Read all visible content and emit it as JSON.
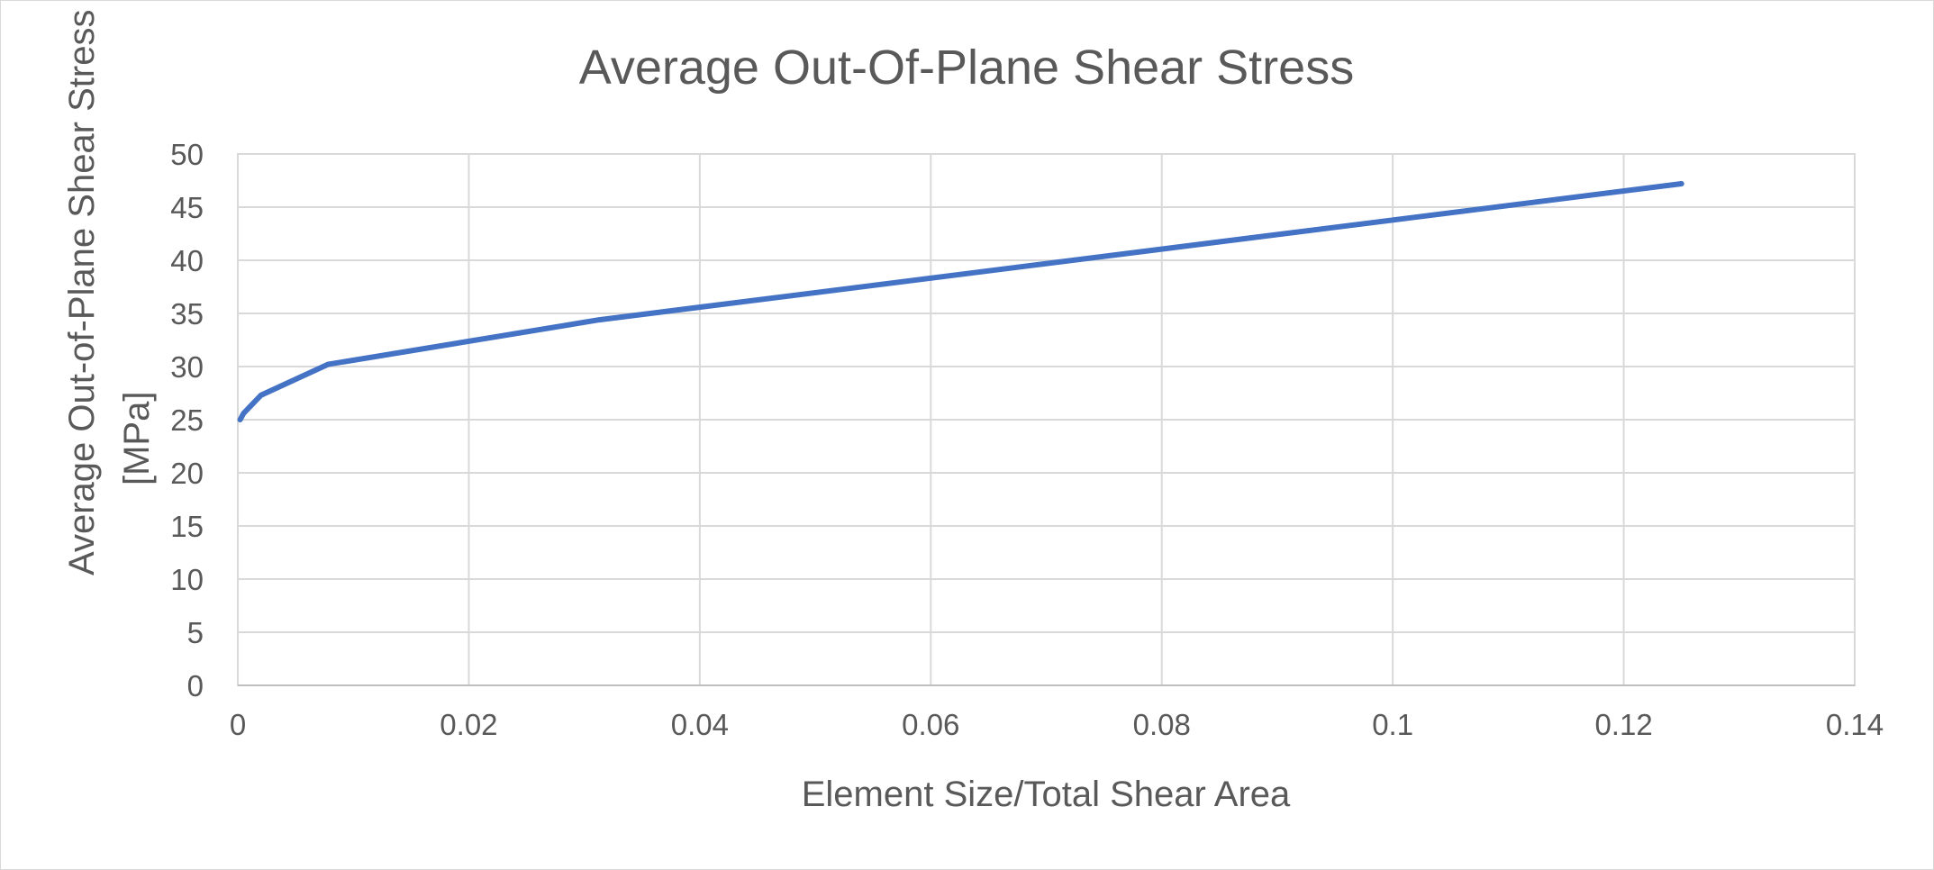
{
  "chart_data": {
    "type": "line",
    "title": "Average Out-Of-Plane Shear Stress",
    "xlabel": "Element Size/Total Shear Area",
    "ylabel_lines": [
      "Average Out-of-Plane Shear Stress",
      "[MPa]"
    ],
    "xlim": [
      0,
      0.14
    ],
    "ylim": [
      0,
      50
    ],
    "x_ticks": [
      0,
      0.02,
      0.04,
      0.06,
      0.08,
      0.1,
      0.12,
      0.14
    ],
    "x_tick_labels": [
      "0",
      "0.02",
      "0.04",
      "0.06",
      "0.08",
      "0.1",
      "0.12",
      "0.14"
    ],
    "y_ticks": [
      0,
      5,
      10,
      15,
      20,
      25,
      30,
      35,
      40,
      45,
      50
    ],
    "y_tick_labels": [
      "0",
      "5",
      "10",
      "15",
      "20",
      "25",
      "30",
      "35",
      "40",
      "45",
      "50"
    ],
    "grid": true,
    "legend": "none",
    "series": [
      {
        "color": "#4472c4",
        "x": [
          0.0002,
          0.0005,
          0.002,
          0.0078,
          0.0313,
          0.125
        ],
        "y": [
          25.0,
          25.6,
          27.3,
          30.2,
          34.4,
          47.2
        ]
      }
    ]
  }
}
